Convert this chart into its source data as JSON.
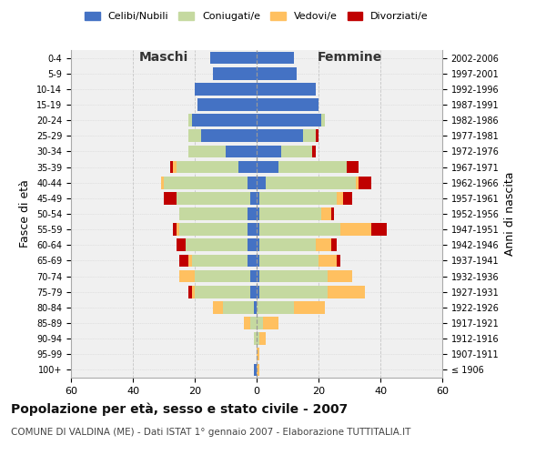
{
  "age_groups": [
    "100+",
    "95-99",
    "90-94",
    "85-89",
    "80-84",
    "75-79",
    "70-74",
    "65-69",
    "60-64",
    "55-59",
    "50-54",
    "45-49",
    "40-44",
    "35-39",
    "30-34",
    "25-29",
    "20-24",
    "15-19",
    "10-14",
    "5-9",
    "0-4"
  ],
  "birth_years": [
    "≤ 1906",
    "1907-1911",
    "1912-1916",
    "1917-1921",
    "1922-1926",
    "1927-1931",
    "1932-1936",
    "1937-1941",
    "1942-1946",
    "1947-1951",
    "1952-1956",
    "1957-1961",
    "1962-1966",
    "1967-1971",
    "1972-1976",
    "1977-1981",
    "1982-1986",
    "1987-1991",
    "1992-1996",
    "1997-2001",
    "2002-2006"
  ],
  "maschi_celibe": [
    1,
    0,
    0,
    0,
    1,
    2,
    2,
    3,
    3,
    3,
    3,
    2,
    3,
    6,
    10,
    18,
    21,
    19,
    20,
    14,
    15
  ],
  "maschi_coniugato": [
    0,
    0,
    1,
    2,
    10,
    18,
    18,
    18,
    20,
    22,
    22,
    24,
    27,
    20,
    12,
    4,
    1,
    0,
    0,
    0,
    0
  ],
  "maschi_vedovo": [
    0,
    0,
    0,
    2,
    3,
    1,
    5,
    1,
    0,
    1,
    0,
    0,
    1,
    1,
    0,
    0,
    0,
    0,
    0,
    0,
    0
  ],
  "maschi_divorziato": [
    0,
    0,
    0,
    0,
    0,
    1,
    0,
    3,
    3,
    1,
    0,
    4,
    0,
    1,
    0,
    0,
    0,
    0,
    0,
    0,
    0
  ],
  "femmine_celibe": [
    0,
    0,
    0,
    0,
    0,
    1,
    1,
    1,
    1,
    1,
    1,
    1,
    3,
    7,
    8,
    15,
    21,
    20,
    19,
    13,
    12
  ],
  "femmine_coniugato": [
    0,
    0,
    1,
    2,
    12,
    22,
    22,
    19,
    18,
    26,
    20,
    25,
    29,
    22,
    10,
    4,
    1,
    0,
    0,
    0,
    0
  ],
  "femmine_vedovo": [
    1,
    1,
    2,
    5,
    10,
    12,
    8,
    6,
    5,
    10,
    3,
    2,
    1,
    0,
    0,
    0,
    0,
    0,
    0,
    0,
    0
  ],
  "femmine_divorziato": [
    0,
    0,
    0,
    0,
    0,
    0,
    0,
    1,
    2,
    5,
    1,
    3,
    4,
    4,
    1,
    1,
    0,
    0,
    0,
    0,
    0
  ],
  "color_celibe": "#4472c4",
  "color_coniugato": "#c5d9a0",
  "color_vedovo": "#ffc060",
  "color_divorziato": "#c00000",
  "xlim": 60,
  "title": "Popolazione per età, sesso e stato civile - 2007",
  "subtitle": "COMUNE DI VALDINA (ME) - Dati ISTAT 1° gennaio 2007 - Elaborazione TUTTITALIA.IT",
  "ylabel": "Fasce di età",
  "ylabel_right": "Anni di nascita",
  "xlabel_maschi": "Maschi",
  "xlabel_femmine": "Femmine",
  "bg_color": "#ffffff",
  "plot_bg_color": "#f0f0f0",
  "grid_color": "#cccccc"
}
